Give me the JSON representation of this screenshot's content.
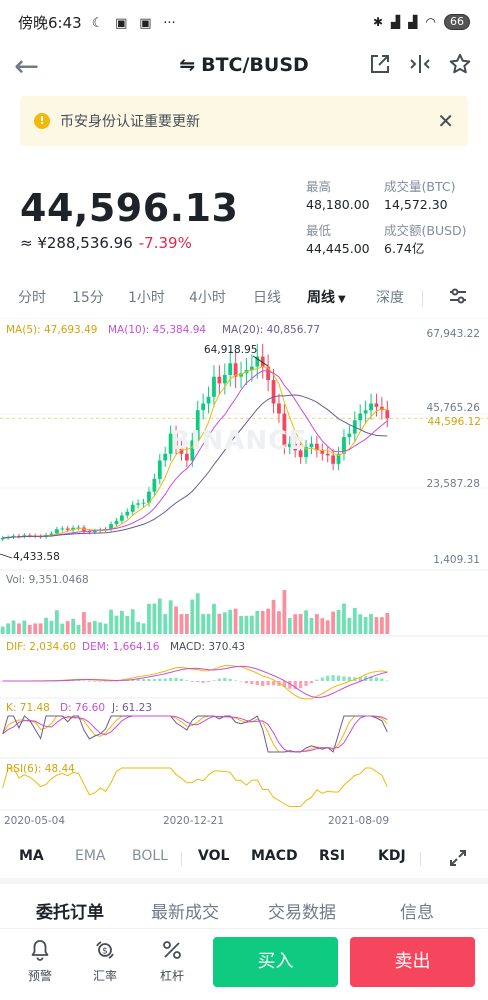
{
  "status_bar": {
    "time": "傍晚6:43",
    "battery": "66",
    "icons": [
      "moon-icon",
      "app-icon",
      "app-icon",
      "more-dots-icon",
      "bluetooth-icon",
      "signal-icon",
      "signal-icon",
      "wifi-icon",
      "battery-icon"
    ],
    "more": "···"
  },
  "header": {
    "pair": "BTC/BUSD",
    "swap_icon": "⇋",
    "back_icon": "←"
  },
  "banner": {
    "text": "币安身份认证重要更新",
    "warn_glyph": "!",
    "close_glyph": "✕"
  },
  "price": {
    "last": "44,596.13",
    "cny": "≈ ¥288,536.96",
    "change": "-7.39%"
  },
  "stats": {
    "high_label": "最高",
    "high_value": "48,180.00",
    "low_label": "最低",
    "low_value": "44,445.00",
    "vol_btc_label": "成交量(BTC)",
    "vol_btc_value": "14,572.30",
    "vol_busd_label": "成交额(BUSD)",
    "vol_busd_value": "6.74亿"
  },
  "timeframes": {
    "items": [
      "分时",
      "15分",
      "1小时",
      "4小时",
      "日线",
      "周线",
      "深度"
    ],
    "active": "周线"
  },
  "chart": {
    "ma_labels": {
      "ma5": "MA(5): 47,693.49",
      "ma10": "MA(10): 45,384.94",
      "ma20": "MA(20): 40,856.77"
    },
    "y_ticks": [
      "67,943.22",
      "45,765.26",
      "23,587.28",
      "1,409.31"
    ],
    "current_price_tag": "44,596.12",
    "high_marker": "64,918.95",
    "low_marker": "4,433.58",
    "watermark": "BINANCE",
    "vol_label": "Vol: 9,351.0468",
    "macd_labels": {
      "dif": "DIF: 2,034.60",
      "dem": "DEM: 1,664.16",
      "macd": "MACD: 370.43"
    },
    "kdj_labels": {
      "k": "K: 71.48",
      "d": "D: 76.60",
      "j": "J: 61.23"
    },
    "rsi_label": "RSI(6): 48.44",
    "x_ticks": [
      "2020-05-04",
      "2020-12-21",
      "2021-08-09"
    ],
    "colors": {
      "up": "#0ecb81",
      "down": "#f6465d",
      "ma5": "#f0b90b",
      "ma10": "#c84ed8",
      "ma20": "#6b5b95"
    }
  },
  "chart_data": {
    "type": "candlestick",
    "interval": "周线",
    "ylim": [
      1409.31,
      67943.22
    ],
    "x_ticks": [
      "2020-05-04",
      "2020-12-21",
      "2021-08-09"
    ],
    "price_series": [
      {
        "name": "close",
        "values": [
          8900,
          9100,
          9500,
          9300,
          9700,
          9600,
          9400,
          9200,
          9800,
          10200,
          11500,
          11700,
          11300,
          11900,
          12000,
          10900,
          10600,
          11000,
          11300,
          11500,
          13000,
          14000,
          15600,
          16700,
          18800,
          19200,
          19400,
          22700,
          26500,
          32000,
          34000,
          40000,
          36000,
          34000,
          32000,
          38000,
          47000,
          49000,
          51000,
          57000,
          55000,
          57500,
          61000,
          57000,
          58000,
          59000,
          60000,
          63000,
          60000,
          56000,
          49000,
          46000,
          36000,
          37000,
          35000,
          33000,
          36000,
          37000,
          35000,
          34000,
          33500,
          31000,
          34000,
          39000,
          40000,
          44000,
          46000,
          47000,
          49000,
          48000,
          47000,
          44596
        ]
      }
    ],
    "annotations": {
      "high": "64,918.95",
      "low": "4,433.58",
      "last": "44,596.12"
    }
  },
  "indicator_tabs": {
    "main": [
      "MA",
      "EMA",
      "BOLL"
    ],
    "sub": [
      "VOL",
      "MACD",
      "RSI",
      "KDJ"
    ]
  },
  "bottom_tabs": {
    "items": [
      "委托订单",
      "最新成交",
      "交易数据",
      "信息"
    ],
    "active": "委托订单"
  },
  "actions": {
    "alert": "预警",
    "rate": "汇率",
    "leverage": "杠杆",
    "buy": "买入",
    "sell": "卖出"
  }
}
